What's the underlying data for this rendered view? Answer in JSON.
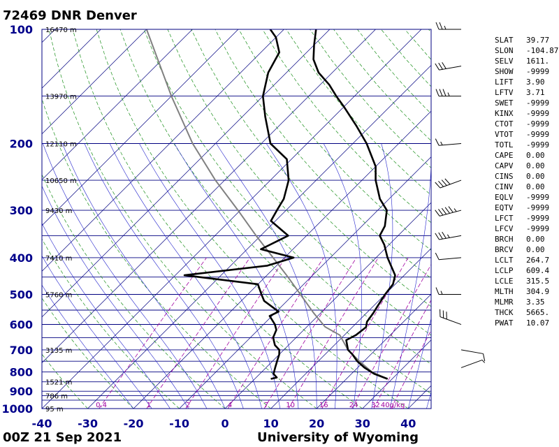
{
  "header": {
    "title": "72469 DNR Denver"
  },
  "footer": {
    "left": "00Z 21 Sep 2021",
    "right": "University of Wyoming"
  },
  "chart_data": {
    "type": "skew-t log-p",
    "xlim": [
      -40,
      45
    ],
    "ylim": [
      1000,
      100
    ],
    "x_ticks": [
      -40,
      -30,
      -20,
      -10,
      0,
      10,
      20,
      30,
      40
    ],
    "x_tick_labels": [
      "-40",
      "-30",
      "-20",
      "-10",
      "0",
      "10",
      "20",
      "30",
      "40"
    ],
    "pressure_ticks": [
      100,
      200,
      300,
      400,
      500,
      600,
      700,
      800,
      900,
      1000
    ],
    "pressure_tick_labels": [
      "100",
      "200",
      "300",
      "400",
      "500",
      "600",
      "700",
      "800",
      "900",
      "1000"
    ],
    "grid": true,
    "height_labels": [
      {
        "p": 100,
        "label": "16470 m"
      },
      {
        "p": 150,
        "label": "13970 m"
      },
      {
        "p": 200,
        "label": "12110 m"
      },
      {
        "p": 250,
        "label": "10650 m"
      },
      {
        "p": 300,
        "label": "9430 m"
      },
      {
        "p": 400,
        "label": "7410 m"
      },
      {
        "p": 500,
        "label": "5760 m"
      },
      {
        "p": 700,
        "label": "3135 m"
      },
      {
        "p": 850,
        "label": "1521 m"
      },
      {
        "p": 925,
        "label": "786 m"
      },
      {
        "p": 1000,
        "label": "95 m"
      }
    ],
    "mixing_ratio_labels": [
      "0.4",
      "1",
      "2",
      "4",
      "7",
      "10",
      "16",
      "24",
      "32",
      "40g/kg"
    ],
    "mixing_ratios": [
      0.4,
      1,
      2,
      4,
      7,
      10,
      16,
      24,
      32,
      40
    ],
    "temperature_profile": [
      [
        835,
        29.0
      ],
      [
        810,
        25.0
      ],
      [
        780,
        21.5
      ],
      [
        750,
        18.5
      ],
      [
        720,
        16.0
      ],
      [
        700,
        14.0
      ],
      [
        660,
        11.5
      ],
      [
        640,
        12.5
      ],
      [
        610,
        13.0
      ],
      [
        590,
        12.0
      ],
      [
        560,
        11.5
      ],
      [
        540,
        11.0
      ],
      [
        500,
        10.0
      ],
      [
        470,
        9.5
      ],
      [
        445,
        8.0
      ],
      [
        400,
        2.5
      ],
      [
        370,
        -1.0
      ],
      [
        350,
        -4.0
      ],
      [
        330,
        -5.0
      ],
      [
        300,
        -8.0
      ],
      [
        280,
        -12.0
      ],
      [
        250,
        -17.0
      ],
      [
        230,
        -20.0
      ],
      [
        200,
        -27.0
      ],
      [
        180,
        -33.0
      ],
      [
        160,
        -40.0
      ],
      [
        150,
        -44.0
      ],
      [
        140,
        -48.0
      ],
      [
        130,
        -53.0
      ],
      [
        120,
        -57.0
      ],
      [
        110,
        -60.0
      ],
      [
        100,
        -63.0
      ],
      [
        98,
        -64.0
      ]
    ],
    "dewpoint_profile": [
      [
        835,
        3.5
      ],
      [
        828,
        4.5
      ],
      [
        810,
        3.0
      ],
      [
        780,
        2.0
      ],
      [
        750,
        1.0
      ],
      [
        720,
        0.0
      ],
      [
        700,
        -1.0
      ],
      [
        680,
        -3.0
      ],
      [
        650,
        -5.0
      ],
      [
        620,
        -6.0
      ],
      [
        600,
        -7.5
      ],
      [
        570,
        -10.5
      ],
      [
        555,
        -9.5
      ],
      [
        520,
        -15.0
      ],
      [
        500,
        -17.0
      ],
      [
        470,
        -20.0
      ],
      [
        445,
        -38.0
      ],
      [
        420,
        -22.0
      ],
      [
        400,
        -18.0
      ],
      [
        380,
        -27.0
      ],
      [
        350,
        -24.0
      ],
      [
        320,
        -31.0
      ],
      [
        300,
        -32.0
      ],
      [
        280,
        -33.0
      ],
      [
        250,
        -36.0
      ],
      [
        220,
        -41.0
      ],
      [
        200,
        -48.0
      ],
      [
        170,
        -55.0
      ],
      [
        150,
        -60.0
      ],
      [
        130,
        -64.0
      ],
      [
        115,
        -66.0
      ],
      [
        105,
        -70.0
      ],
      [
        100,
        -73.0
      ]
    ],
    "parcel_profile": [
      [
        835,
        29.0
      ],
      [
        800,
        24.0
      ],
      [
        750,
        19.0
      ],
      [
        700,
        14.0
      ],
      [
        640,
        9.0
      ],
      [
        609,
        4.0
      ],
      [
        560,
        -1.5
      ],
      [
        500,
        -8.5
      ],
      [
        450,
        -15.0
      ],
      [
        400,
        -22.5
      ],
      [
        350,
        -31.0
      ],
      [
        300,
        -40.5
      ],
      [
        250,
        -52.0
      ],
      [
        200,
        -65.0
      ],
      [
        150,
        -80.0
      ],
      [
        100,
        -100.0
      ]
    ],
    "wind_barbs": [
      {
        "p": 100,
        "dir": 270,
        "kt": 25
      },
      {
        "p": 125,
        "dir": 260,
        "kt": 30
      },
      {
        "p": 150,
        "dir": 270,
        "kt": 35
      },
      {
        "p": 200,
        "dir": 265,
        "kt": 15
      },
      {
        "p": 250,
        "dir": 250,
        "kt": 40
      },
      {
        "p": 300,
        "dir": 255,
        "kt": 55
      },
      {
        "p": 350,
        "dir": 260,
        "kt": 35
      },
      {
        "p": 400,
        "dir": 265,
        "kt": 10
      },
      {
        "p": 500,
        "dir": 270,
        "kt": 15
      },
      {
        "p": 600,
        "dir": 290,
        "kt": 30
      },
      {
        "p": 700,
        "dir": 100,
        "kt": 10
      },
      {
        "p": 780,
        "dir": 70,
        "kt": 5
      }
    ],
    "indices": [
      {
        "name": "SLAT",
        "value": "39.77"
      },
      {
        "name": "SLON",
        "value": "-104.87"
      },
      {
        "name": "SELV",
        "value": "1611."
      },
      {
        "name": "SHOW",
        "value": "-9999"
      },
      {
        "name": "LIFT",
        "value": "3.90"
      },
      {
        "name": "LFTV",
        "value": "3.71"
      },
      {
        "name": "SWET",
        "value": "-9999"
      },
      {
        "name": "KINX",
        "value": "-9999"
      },
      {
        "name": "CTOT",
        "value": "-9999"
      },
      {
        "name": "VTOT",
        "value": "-9999"
      },
      {
        "name": "TOTL",
        "value": "-9999"
      },
      {
        "name": "CAPE",
        "value": "0.00"
      },
      {
        "name": "CAPV",
        "value": "0.00"
      },
      {
        "name": "CINS",
        "value": "0.00"
      },
      {
        "name": "CINV",
        "value": "0.00"
      },
      {
        "name": "EQLV",
        "value": "-9999"
      },
      {
        "name": "EQTV",
        "value": "-9999"
      },
      {
        "name": "LFCT",
        "value": "-9999"
      },
      {
        "name": "LFCV",
        "value": "-9999"
      },
      {
        "name": "BRCH",
        "value": "0.00"
      },
      {
        "name": "BRCV",
        "value": "0.00"
      },
      {
        "name": "LCLT",
        "value": "264.7"
      },
      {
        "name": "LCLP",
        "value": "609.4"
      },
      {
        "name": "LCLE",
        "value": "315.5"
      },
      {
        "name": "MLTH",
        "value": "304.9"
      },
      {
        "name": "MLMR",
        "value": "3.35"
      },
      {
        "name": "THCK",
        "value": "5665."
      },
      {
        "name": "PWAT",
        "value": "10.07"
      }
    ],
    "colors": {
      "isobar": "#000080",
      "isotherm": "#000080",
      "dry_adiabat": "#1a8f1a",
      "moist_adiabat": "#2222cc",
      "mixing_ratio": "#a000a0",
      "profile": "#000000",
      "parcel": "#808080",
      "axis_label": "#00008b"
    }
  }
}
